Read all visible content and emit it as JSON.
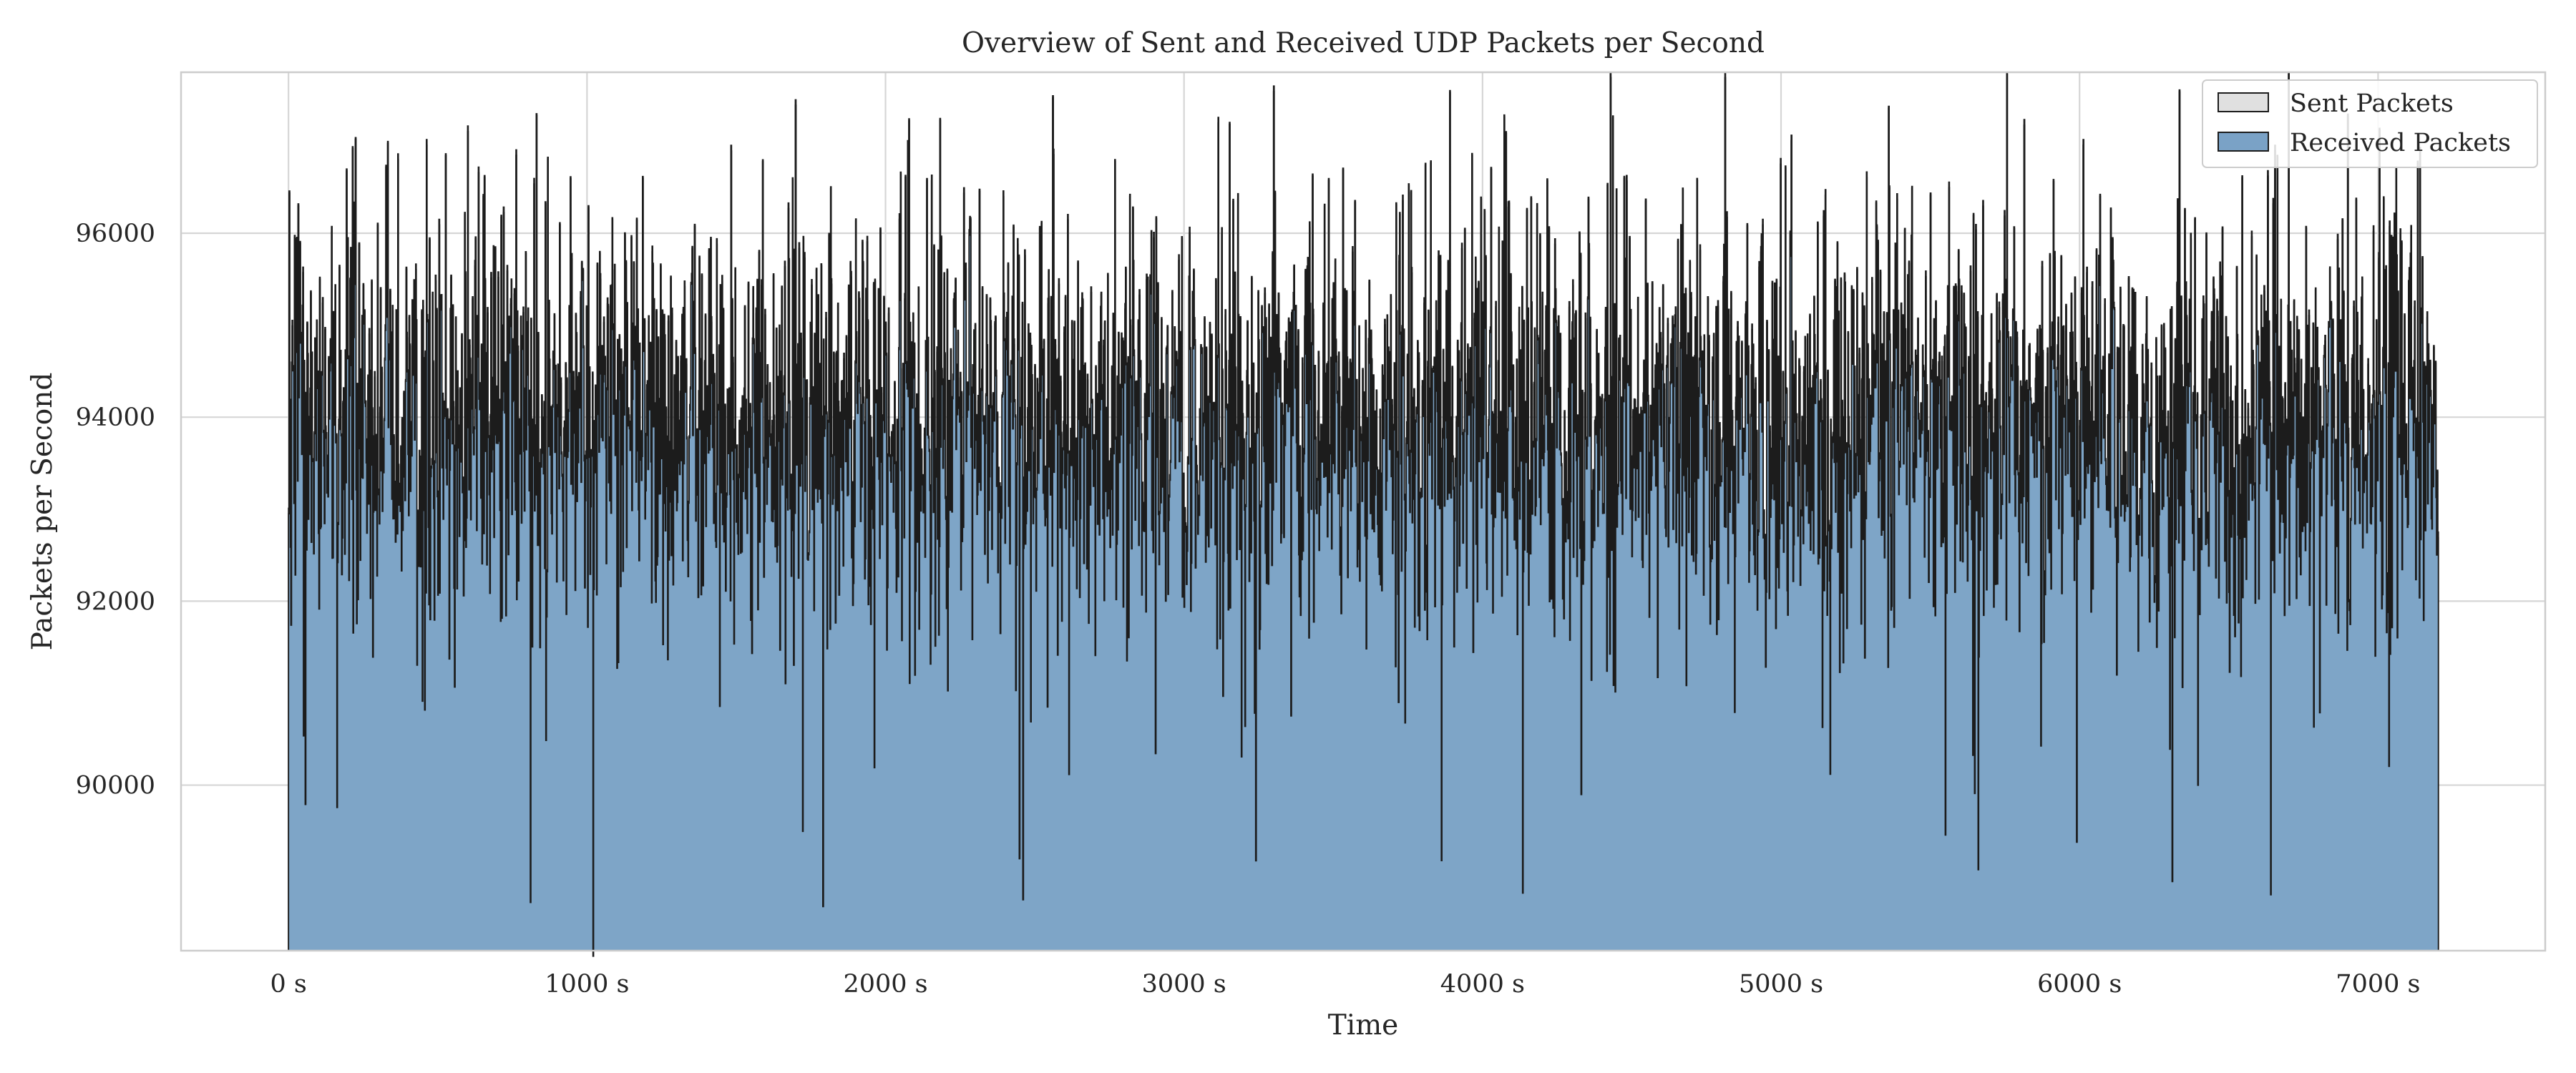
{
  "chart_data": {
    "type": "area",
    "title": "Overview of Sent and Received UDP Packets per Second",
    "xlabel": "Time",
    "ylabel": "Packets per Second",
    "xlim": [
      -360,
      7560
    ],
    "ylim": [
      88200,
      97750
    ],
    "x_ticks": [
      0,
      1000,
      2000,
      3000,
      4000,
      5000,
      6000,
      7000
    ],
    "x_tick_labels": [
      "0 s",
      "1000 s",
      "2000 s",
      "3000 s",
      "4000 s",
      "5000 s",
      "6000 s",
      "7000 s"
    ],
    "y_ticks": [
      90000,
      92000,
      94000,
      96000
    ],
    "y_tick_labels": [
      "90000",
      "92000",
      "94000",
      "96000"
    ],
    "grid": true,
    "legend_position": "top-right",
    "series": [
      {
        "name": "Sent Packets",
        "style": "step-filled",
        "color": "#e0e0e0",
        "edge": "#1c1c1c"
      },
      {
        "name": "Received Packets",
        "style": "step-filled",
        "color": "#7aa2c6",
        "edge": "#1c1c1c"
      }
    ],
    "x_range_seconds": [
      0,
      7200
    ],
    "typical_range_per_second": [
      90500,
      96500
    ],
    "mean_approx": 94000,
    "notable_extremes": [
      {
        "x": 1020,
        "y": 88200
      },
      {
        "x": 1790,
        "y": 88700
      },
      {
        "x": 3300,
        "y": 97600
      },
      {
        "x": 3890,
        "y": 97550
      },
      {
        "x": 5660,
        "y": 89100
      },
      {
        "x": 5990,
        "y": 89400
      },
      {
        "x": 6700,
        "y": 97750
      }
    ]
  }
}
